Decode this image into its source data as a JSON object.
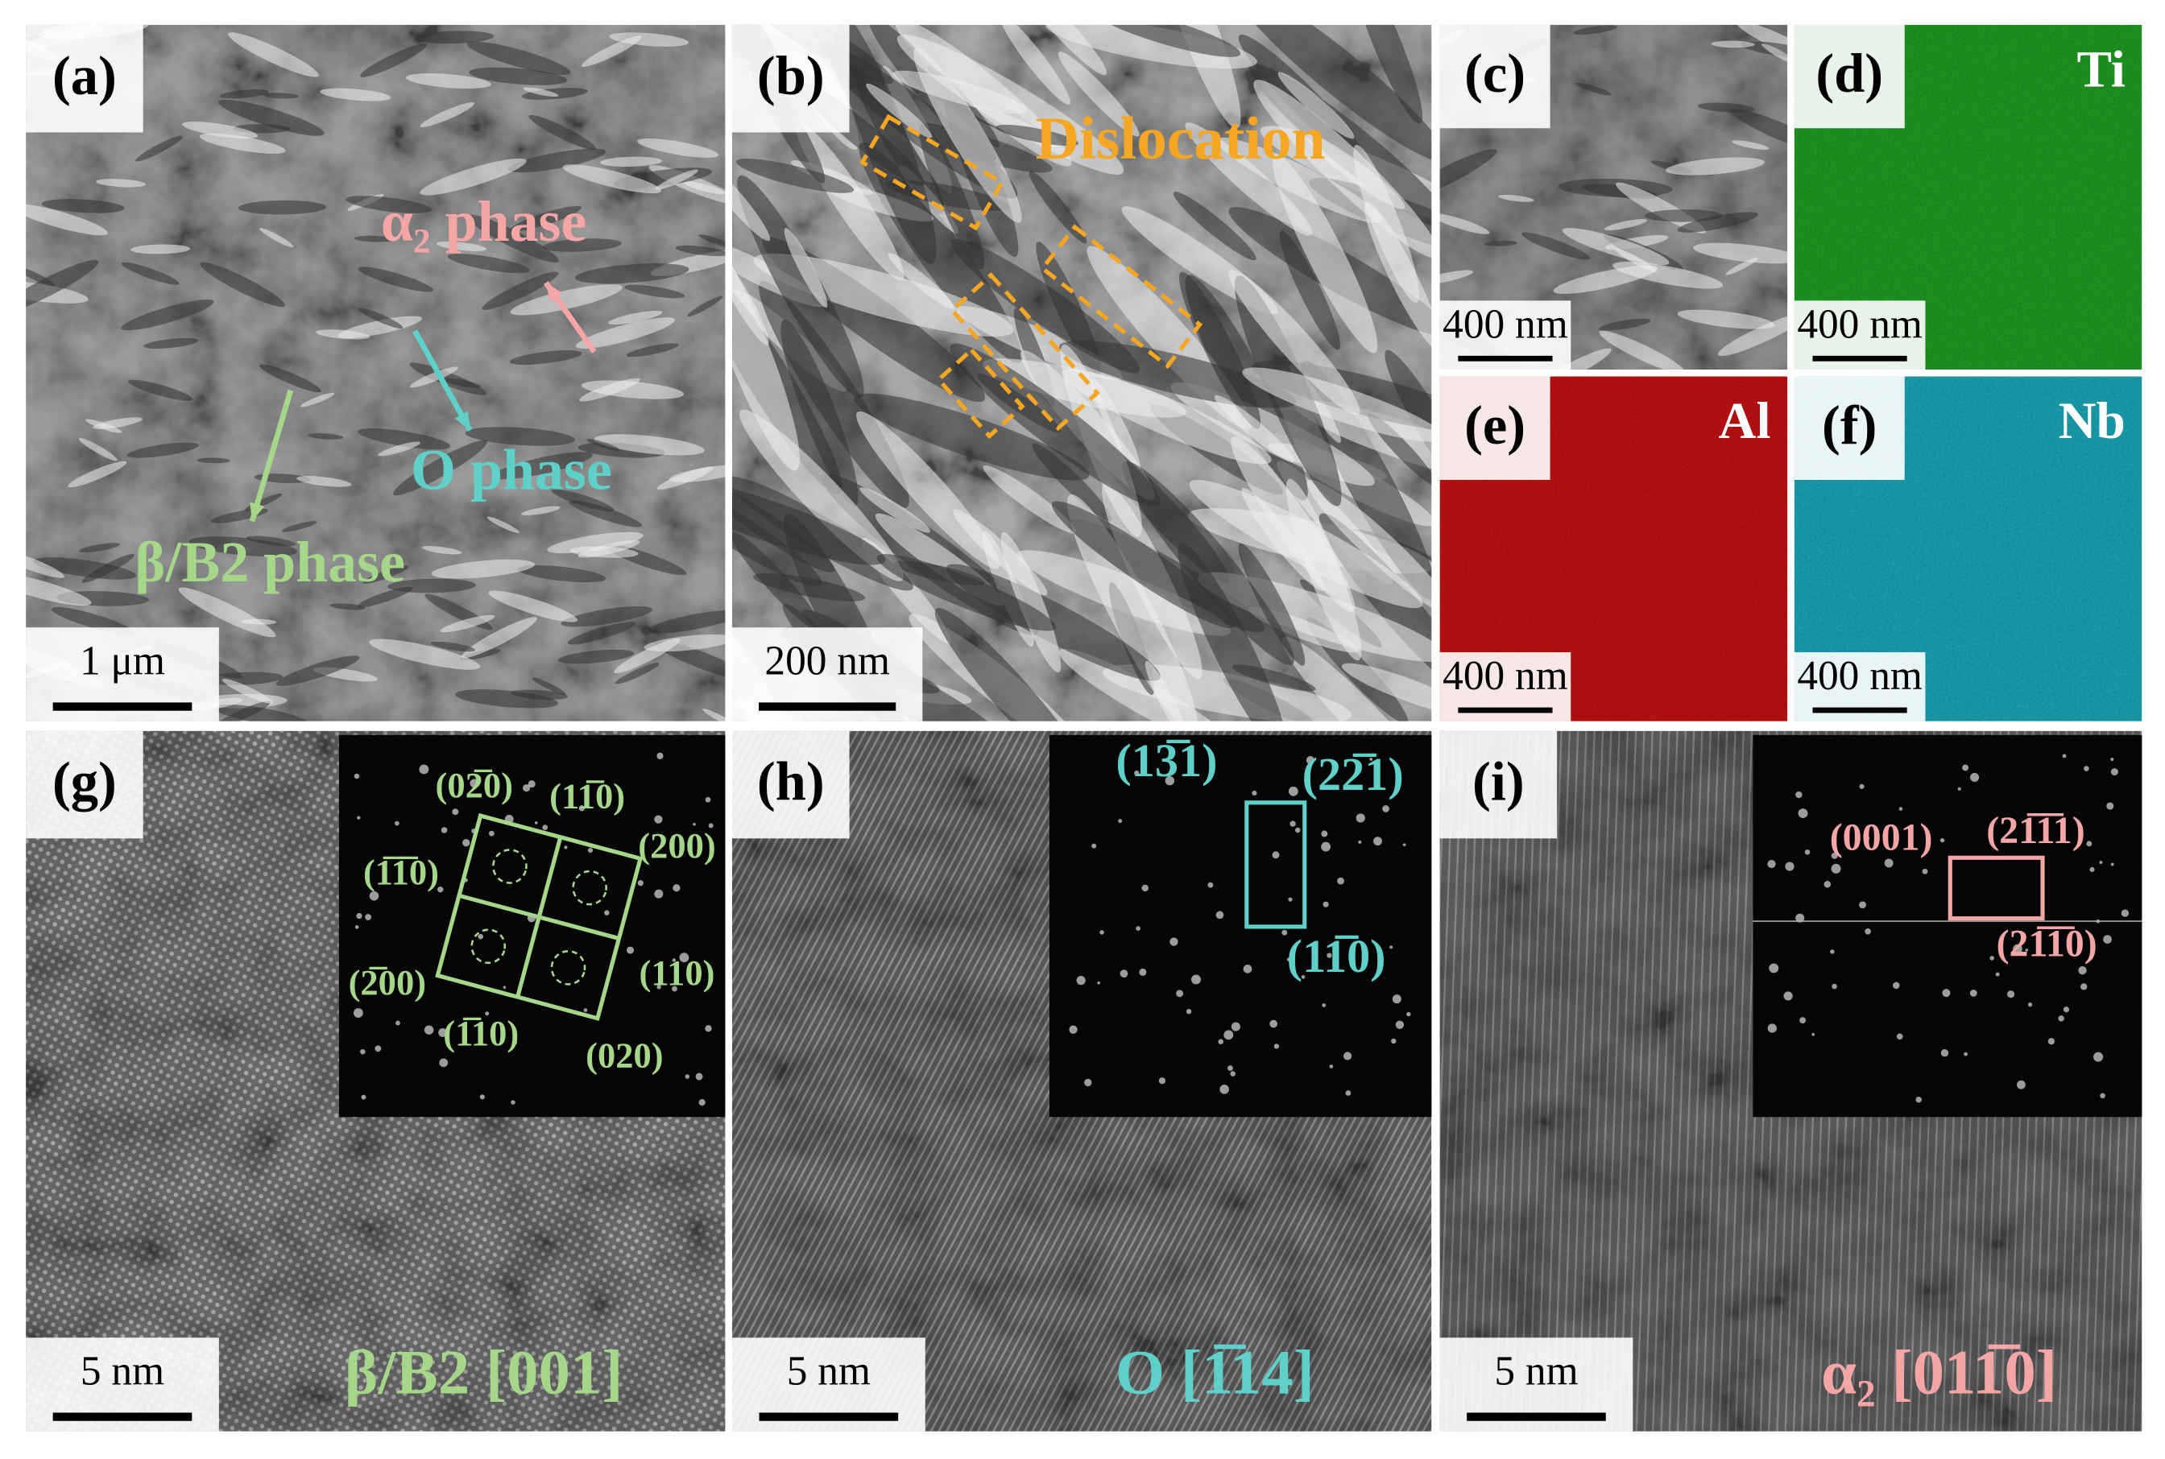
{
  "panels": [
    {
      "label": "(a)",
      "scale_bar": "1 μm",
      "annotations": [
        "α₂ phase",
        "O phase",
        "β/B2 phase"
      ]
    },
    {
      "label": "(b)",
      "scale_bar": "200 nm",
      "annotations": [
        "Dislocation"
      ]
    },
    {
      "label": "(c)",
      "scale_bar": "400 nm"
    },
    {
      "label": "(d)",
      "scale_bar": "400 nm",
      "element": "Ti"
    },
    {
      "label": "(e)",
      "scale_bar": "400 nm",
      "element": "Al"
    },
    {
      "label": "(f)",
      "scale_bar": "400 nm",
      "element": "Nb"
    },
    {
      "label": "(g)",
      "scale_bar": "5 nm",
      "zone_axis": "β/B2 [001]",
      "spots": [
        "(02̅0)",
        "(11̅0)",
        "(200)",
        "(1̅1̅0)",
        "(2̅00)",
        "(110)",
        "(1̅10)",
        "(020)"
      ]
    },
    {
      "label": "(h)",
      "scale_bar": "5 nm",
      "zone_axis": "O [1̅14]",
      "spots": [
        "(13̅1)",
        "(22̅1)",
        "(11̅0)"
      ]
    },
    {
      "label": "(i)",
      "scale_bar": "5 nm",
      "zone_axis": "α₂ [011̅0]",
      "spots": [
        "(0001)",
        "(21̅1̅1)",
        "(21̅1̅0)"
      ]
    }
  ]
}
